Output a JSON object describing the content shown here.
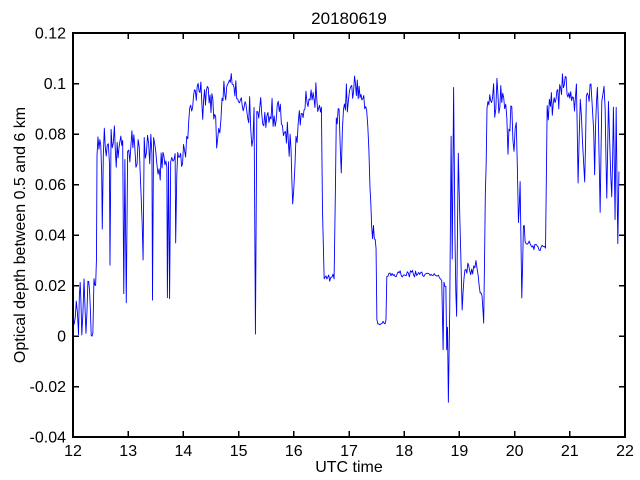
{
  "figure": {
    "background": "#ffffff",
    "plot_background": "#ffffff"
  },
  "chart_data": {
    "type": "line",
    "title": "20180619",
    "xlabel": "UTC time",
    "ylabel": "Optical depth between 0.5 and 6 km",
    "xlim": [
      12,
      22
    ],
    "ylim": [
      -0.04,
      0.12
    ],
    "grid": false,
    "legend": null,
    "line_color": "#0000ff",
    "axis_color": "#000000",
    "xticks": {
      "values": [
        12,
        13,
        14,
        15,
        16,
        17,
        18,
        19,
        20,
        21,
        22
      ],
      "labels": [
        "12",
        "13",
        "14",
        "15",
        "16",
        "17",
        "18",
        "19",
        "20",
        "21",
        "22"
      ]
    },
    "yticks": {
      "values": [
        -0.04,
        -0.02,
        0,
        0.02,
        0.04,
        0.06,
        0.08,
        0.1,
        0.12
      ],
      "labels": [
        "-0.04",
        "-0.02",
        "0",
        "0.02",
        "0.04",
        "0.06",
        "0.08",
        "0.1",
        "0.12"
      ]
    },
    "sample_step_hours": 0.018,
    "series": [
      {
        "name": "optical depth between 0.5 and 6 km",
        "anchor_format": [
          "utc_hour",
          "optical_depth",
          "noise_amplitude"
        ],
        "anchors": [
          [
            12.0,
            0.007,
            0.002
          ],
          [
            12.06,
            0.01,
            0.003
          ],
          [
            12.1,
            0.004,
            0.003
          ],
          [
            12.13,
            0.022,
            0.002
          ],
          [
            12.16,
            0.0,
            0.001
          ],
          [
            12.2,
            0.021,
            0.002
          ],
          [
            12.235,
            0.0,
            0.001
          ],
          [
            12.27,
            0.022,
            0.002
          ],
          [
            12.3,
            0.02,
            0.002
          ],
          [
            12.33,
            0.0,
            0.001
          ],
          [
            12.36,
            0.001,
            0.001
          ],
          [
            12.38,
            0.022,
            0.002
          ],
          [
            12.41,
            0.021,
            0.001
          ],
          [
            12.425,
            0.03,
            0.001
          ],
          [
            12.435,
            0.072,
            0.004
          ],
          [
            12.47,
            0.078,
            0.006
          ],
          [
            12.52,
            0.072,
            0.006
          ],
          [
            12.53,
            0.04,
            0.002
          ],
          [
            12.55,
            0.075,
            0.006
          ],
          [
            12.62,
            0.077,
            0.006
          ],
          [
            12.66,
            0.07,
            0.006
          ],
          [
            12.67,
            0.027,
            0.002
          ],
          [
            12.69,
            0.074,
            0.006
          ],
          [
            12.75,
            0.077,
            0.006
          ],
          [
            12.8,
            0.07,
            0.006
          ],
          [
            12.85,
            0.075,
            0.006
          ],
          [
            12.9,
            0.072,
            0.006
          ],
          [
            12.92,
            0.018,
            0.002
          ],
          [
            12.94,
            0.07,
            0.005
          ],
          [
            12.965,
            0.012,
            0.002
          ],
          [
            12.99,
            0.072,
            0.005
          ],
          [
            13.05,
            0.077,
            0.006
          ],
          [
            13.12,
            0.071,
            0.006
          ],
          [
            13.2,
            0.075,
            0.006
          ],
          [
            13.27,
            0.03,
            0.002
          ],
          [
            13.29,
            0.074,
            0.006
          ],
          [
            13.35,
            0.077,
            0.006
          ],
          [
            13.43,
            0.072,
            0.006
          ],
          [
            13.44,
            0.012,
            0.002
          ],
          [
            13.46,
            0.074,
            0.005
          ],
          [
            13.52,
            0.07,
            0.005
          ],
          [
            13.58,
            0.065,
            0.004
          ],
          [
            13.63,
            0.072,
            0.005
          ],
          [
            13.7,
            0.07,
            0.004
          ],
          [
            13.71,
            0.013,
            0.002
          ],
          [
            13.73,
            0.07,
            0.004
          ],
          [
            13.75,
            0.015,
            0.002
          ],
          [
            13.77,
            0.07,
            0.004
          ],
          [
            13.85,
            0.07,
            0.004
          ],
          [
            13.86,
            0.037,
            0.002
          ],
          [
            13.88,
            0.068,
            0.004
          ],
          [
            13.95,
            0.07,
            0.005
          ],
          [
            14.02,
            0.072,
            0.005
          ],
          [
            14.08,
            0.085,
            0.005
          ],
          [
            14.15,
            0.092,
            0.006
          ],
          [
            14.25,
            0.096,
            0.006
          ],
          [
            14.35,
            0.093,
            0.006
          ],
          [
            14.45,
            0.097,
            0.006
          ],
          [
            14.55,
            0.09,
            0.006
          ],
          [
            14.62,
            0.078,
            0.005
          ],
          [
            14.7,
            0.093,
            0.006
          ],
          [
            14.8,
            0.098,
            0.006
          ],
          [
            14.9,
            0.099,
            0.006
          ],
          [
            15.0,
            0.094,
            0.006
          ],
          [
            15.1,
            0.092,
            0.006
          ],
          [
            15.2,
            0.088,
            0.005
          ],
          [
            15.24,
            0.07,
            0.004
          ],
          [
            15.28,
            0.09,
            0.004
          ],
          [
            15.305,
            0.0,
            0.001
          ],
          [
            15.33,
            0.086,
            0.004
          ],
          [
            15.4,
            0.09,
            0.006
          ],
          [
            15.55,
            0.086,
            0.006
          ],
          [
            15.7,
            0.088,
            0.006
          ],
          [
            15.85,
            0.082,
            0.006
          ],
          [
            15.95,
            0.073,
            0.006
          ],
          [
            15.98,
            0.052,
            0.003
          ],
          [
            16.02,
            0.072,
            0.006
          ],
          [
            16.1,
            0.082,
            0.006
          ],
          [
            16.22,
            0.094,
            0.006
          ],
          [
            16.35,
            0.093,
            0.006
          ],
          [
            16.45,
            0.092,
            0.005
          ],
          [
            16.5,
            0.088,
            0.004
          ],
          [
            16.52,
            0.05,
            0.002
          ],
          [
            16.535,
            0.036,
            0.002
          ],
          [
            16.55,
            0.024,
            0.0015
          ],
          [
            16.65,
            0.023,
            0.0015
          ],
          [
            16.73,
            0.023,
            0.0015
          ],
          [
            16.755,
            0.06,
            0.002
          ],
          [
            16.77,
            0.086,
            0.004
          ],
          [
            16.82,
            0.092,
            0.005
          ],
          [
            16.86,
            0.064,
            0.003
          ],
          [
            16.9,
            0.09,
            0.005
          ],
          [
            16.97,
            0.095,
            0.006
          ],
          [
            17.05,
            0.098,
            0.005
          ],
          [
            17.15,
            0.096,
            0.005
          ],
          [
            17.25,
            0.094,
            0.005
          ],
          [
            17.32,
            0.09,
            0.005
          ],
          [
            17.38,
            0.06,
            0.004
          ],
          [
            17.41,
            0.044,
            0.003
          ],
          [
            17.46,
            0.038,
            0.003
          ],
          [
            17.49,
            0.035,
            0.002
          ],
          [
            17.505,
            0.006,
            0.001
          ],
          [
            17.6,
            0.005,
            0.001
          ],
          [
            17.67,
            0.005,
            0.001
          ],
          [
            17.685,
            0.024,
            0.001
          ],
          [
            17.8,
            0.024,
            0.0012
          ],
          [
            18.0,
            0.0245,
            0.0012
          ],
          [
            18.15,
            0.025,
            0.0012
          ],
          [
            18.3,
            0.024,
            0.0012
          ],
          [
            18.45,
            0.0245,
            0.0012
          ],
          [
            18.6,
            0.024,
            0.0012
          ],
          [
            18.68,
            0.021,
            0.0015
          ],
          [
            18.705,
            -0.005,
            0.001
          ],
          [
            18.72,
            0.02,
            0.0015
          ],
          [
            18.755,
            0.02,
            0.0015
          ],
          [
            18.77,
            -0.006,
            0.001
          ],
          [
            18.785,
            0.004,
            0.002
          ],
          [
            18.8,
            -0.026,
            0.001
          ],
          [
            18.825,
            0.012,
            0.002
          ],
          [
            18.85,
            0.079,
            0.002
          ],
          [
            18.87,
            0.03,
            0.002
          ],
          [
            18.895,
            0.097,
            0.002
          ],
          [
            18.92,
            0.038,
            0.003
          ],
          [
            18.95,
            0.008,
            0.002
          ],
          [
            18.98,
            0.074,
            0.002
          ],
          [
            19.01,
            0.045,
            0.003
          ],
          [
            19.05,
            0.013,
            0.002
          ],
          [
            19.1,
            0.026,
            0.002
          ],
          [
            19.17,
            0.028,
            0.002
          ],
          [
            19.24,
            0.024,
            0.002
          ],
          [
            19.3,
            0.029,
            0.002
          ],
          [
            19.36,
            0.02,
            0.002
          ],
          [
            19.41,
            0.016,
            0.002
          ],
          [
            19.44,
            0.005,
            0.001
          ],
          [
            19.47,
            0.055,
            0.003
          ],
          [
            19.5,
            0.09,
            0.005
          ],
          [
            19.6,
            0.094,
            0.006
          ],
          [
            19.68,
            0.09,
            0.006
          ],
          [
            19.75,
            0.095,
            0.006
          ],
          [
            19.82,
            0.092,
            0.006
          ],
          [
            19.88,
            0.078,
            0.005
          ],
          [
            19.95,
            0.092,
            0.005
          ],
          [
            19.99,
            0.07,
            0.004
          ],
          [
            20.03,
            0.088,
            0.005
          ],
          [
            20.07,
            0.042,
            0.003
          ],
          [
            20.1,
            0.062,
            0.004
          ],
          [
            20.13,
            0.015,
            0.002
          ],
          [
            20.16,
            0.045,
            0.003
          ],
          [
            20.19,
            0.038,
            0.002
          ],
          [
            20.23,
            0.037,
            0.0015
          ],
          [
            20.35,
            0.036,
            0.0015
          ],
          [
            20.48,
            0.035,
            0.0015
          ],
          [
            20.56,
            0.035,
            0.0015
          ],
          [
            20.575,
            0.06,
            0.002
          ],
          [
            20.59,
            0.088,
            0.004
          ],
          [
            20.65,
            0.092,
            0.005
          ],
          [
            20.75,
            0.095,
            0.006
          ],
          [
            20.85,
            0.098,
            0.006
          ],
          [
            20.95,
            0.099,
            0.006
          ],
          [
            21.05,
            0.094,
            0.006
          ],
          [
            21.12,
            0.097,
            0.006
          ],
          [
            21.15,
            0.066,
            0.004
          ],
          [
            21.19,
            0.094,
            0.005
          ],
          [
            21.27,
            0.061,
            0.004
          ],
          [
            21.3,
            0.093,
            0.006
          ],
          [
            21.4,
            0.096,
            0.006
          ],
          [
            21.45,
            0.068,
            0.004
          ],
          [
            21.5,
            0.097,
            0.006
          ],
          [
            21.55,
            0.05,
            0.003
          ],
          [
            21.58,
            0.092,
            0.005
          ],
          [
            21.64,
            0.094,
            0.006
          ],
          [
            21.67,
            0.053,
            0.003
          ],
          [
            21.7,
            0.092,
            0.005
          ],
          [
            21.76,
            0.053,
            0.003
          ],
          [
            21.79,
            0.09,
            0.005
          ],
          [
            21.82,
            0.043,
            0.003
          ],
          [
            21.84,
            0.088,
            0.004
          ],
          [
            21.87,
            0.037,
            0.002
          ],
          [
            21.89,
            0.065,
            0.003
          ]
        ]
      }
    ]
  }
}
